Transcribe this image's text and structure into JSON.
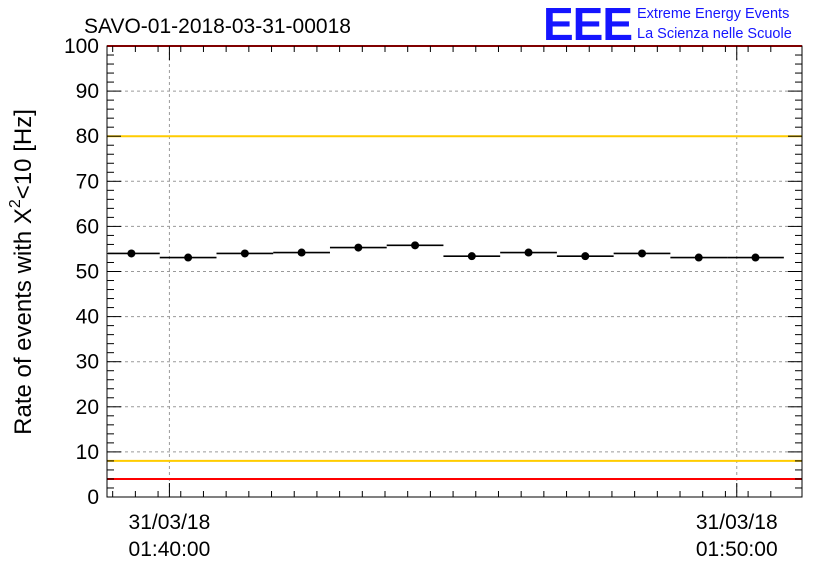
{
  "chart_data": {
    "type": "scatter",
    "title": "SAVO-01-2018-03-31-00018",
    "xlabel": "",
    "ylabel_main": "Rate of events with X",
    "ylabel_sup": "2",
    "ylabel_tail": "<10 [Hz]",
    "ylim": [
      0,
      100
    ],
    "yticks": [
      "0",
      "10",
      "20",
      "30",
      "40",
      "50",
      "60",
      "70",
      "80",
      "90",
      "100"
    ],
    "x_unit": "minutes",
    "xlim": [
      -1.1,
      11.15
    ],
    "x_major_ticks": [
      {
        "x": 0,
        "date": "31/03/18",
        "time": "01:40:00"
      },
      {
        "x": 10,
        "date": "31/03/18",
        "time": "01:50:00"
      }
    ],
    "grid": true,
    "series": [
      {
        "name": "rate",
        "bin_halfwidth": 0.5,
        "x": [
          -0.67,
          0.33,
          1.33,
          2.33,
          3.33,
          4.33,
          5.33,
          6.33,
          7.33,
          8.33,
          9.33,
          10.33
        ],
        "values": [
          54.0,
          53.1,
          54.0,
          54.2,
          55.3,
          55.8,
          53.4,
          54.2,
          53.4,
          54.0,
          53.1,
          53.1
        ]
      }
    ],
    "reference_lines": [
      {
        "name": "upper-red-limit",
        "value": 100,
        "color": "#ff0000"
      },
      {
        "name": "upper-yellow-limit",
        "value": 80,
        "color": "#ffcc00"
      },
      {
        "name": "lower-yellow-limit",
        "value": 8,
        "color": "#ffcc00"
      },
      {
        "name": "lower-red-limit",
        "value": 4,
        "color": "#ff0000"
      }
    ]
  },
  "logo": {
    "mark": "EEE",
    "line1": "Extreme Energy Events",
    "line2": "La Scienza nelle Scuole",
    "color": "#1515ff"
  }
}
